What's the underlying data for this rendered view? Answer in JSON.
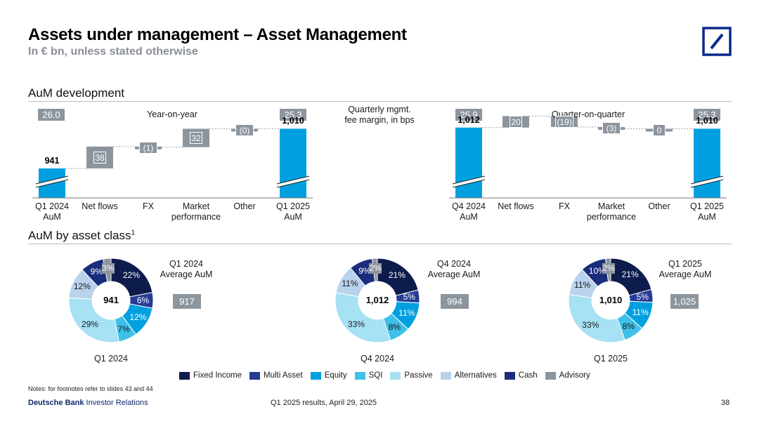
{
  "header": {
    "title": "Assets under management – Asset Management",
    "subtitle": "In € bn, unless stated otherwise"
  },
  "sections": {
    "aum_development": "AuM development",
    "aum_by_asset_class": "AuM by asset class",
    "aum_by_asset_class_sup": "1"
  },
  "fee_margin_label_line1": "Quarterly mgmt.",
  "fee_margin_label_line2": "fee margin, in bps",
  "colors": {
    "accent_blue": "#00a0e0",
    "badge_grey": "#8c959e",
    "navy": "#0b1e5b",
    "logo_blue": "#0b2a8c"
  },
  "chart_data": [
    {
      "type": "bar",
      "subtype": "waterfall",
      "title": "Year-on-year",
      "categories": [
        "Q1 2024\nAuM",
        "Net flows",
        "FX",
        "Market\nperformance",
        "Other",
        "Q1 2025\nAuM"
      ],
      "values": [
        941,
        38,
        -1,
        32,
        0,
        1010
      ],
      "value_labels": [
        "941",
        "38",
        "(1)",
        "32",
        "(0)",
        "1,010"
      ],
      "kinds": [
        "total",
        "delta",
        "delta",
        "delta",
        "delta",
        "total"
      ],
      "fee_margin_start": "26.0",
      "fee_margin_end": "25.3",
      "axis_break": true
    },
    {
      "type": "bar",
      "subtype": "waterfall",
      "title": "Quarter-on-quarter",
      "categories": [
        "Q4 2024\nAuM",
        "Net flows",
        "FX",
        "Market\nperformance",
        "Other",
        "Q1 2025\nAuM"
      ],
      "values": [
        1012,
        20,
        -19,
        -3,
        0,
        1010
      ],
      "value_labels": [
        "1,012",
        "20",
        "(19)",
        "(3)",
        "0",
        "1,010"
      ],
      "kinds": [
        "total",
        "delta",
        "delta",
        "delta",
        "delta",
        "total"
      ],
      "fee_margin_start": "25.9",
      "fee_margin_end": "25.3",
      "axis_break": true
    },
    {
      "type": "pie",
      "subtype": "donut",
      "title": "Q1 2024",
      "center_label": "941",
      "average_label_line1": "Q1 2024",
      "average_label_line2": "Average AuM",
      "average_value": "917",
      "categories": [
        "Fixed Income",
        "Multi Asset",
        "Equity",
        "SQI",
        "Passive",
        "Alternatives",
        "Cash",
        "Advisory"
      ],
      "values": [
        22,
        6,
        12,
        7,
        29,
        12,
        9,
        3
      ],
      "value_labels": [
        "22%",
        "6%",
        "12%",
        "7%",
        "29%",
        "12%",
        "9%",
        "3%"
      ]
    },
    {
      "type": "pie",
      "subtype": "donut",
      "title": "Q4 2024",
      "center_label": "1,012",
      "average_label_line1": "Q4 2024",
      "average_label_line2": "Average AuM",
      "average_value": "994",
      "categories": [
        "Fixed Income",
        "Multi Asset",
        "Equity",
        "SQI",
        "Passive",
        "Alternatives",
        "Cash",
        "Advisory"
      ],
      "values": [
        21,
        5,
        11,
        8,
        33,
        11,
        9,
        2
      ],
      "value_labels": [
        "21%",
        "5%",
        "11%",
        "8%",
        "33%",
        "11%",
        "9%",
        "2%"
      ]
    },
    {
      "type": "pie",
      "subtype": "donut",
      "title": "Q1 2025",
      "center_label": "1,010",
      "average_label_line1": "Q1 2025",
      "average_label_line2": "Average AuM",
      "average_value": "1,025",
      "categories": [
        "Fixed Income",
        "Multi Asset",
        "Equity",
        "SQI",
        "Passive",
        "Alternatives",
        "Cash",
        "Advisory"
      ],
      "values": [
        21,
        5,
        11,
        8,
        33,
        11,
        10,
        2
      ],
      "value_labels": [
        "21%",
        "5%",
        "11%",
        "8%",
        "33%",
        "11%",
        "10%",
        "2%"
      ]
    }
  ],
  "legend": [
    {
      "label": "Fixed Income",
      "color": "#0d1b4d"
    },
    {
      "label": "Multi Asset",
      "color": "#253c94"
    },
    {
      "label": "Equity",
      "color": "#00a0e0"
    },
    {
      "label": "SQI",
      "color": "#3fc0e8"
    },
    {
      "label": "Passive",
      "color": "#a6e1f4"
    },
    {
      "label": "Alternatives",
      "color": "#b9d3ec"
    },
    {
      "label": "Cash",
      "color": "#1a2d7c"
    },
    {
      "label": "Advisory",
      "color": "#8c959e"
    }
  ],
  "footer": {
    "footnote": "Notes: for footnotes refer to slides 43 and 44",
    "brand_bold": "Deutsche Bank",
    "brand_rest": " Investor Relations",
    "center": "Q1 2025 results, April 29, 2025",
    "page_number": "38"
  }
}
